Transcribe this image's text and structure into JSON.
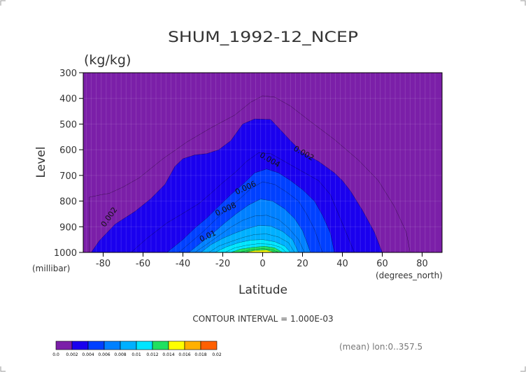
{
  "chart_data": {
    "type": "contour",
    "title": "SHUM_1992-12_NCEP",
    "units": "(kg/kg)",
    "xlabel": "Latitude",
    "ylabel": "Level",
    "x_unit_label": "(degrees_north)",
    "y_unit_label": "(millibar)",
    "xlim": [
      -90,
      90
    ],
    "ylim": [
      1000,
      300
    ],
    "x_ticks": [
      -80,
      -60,
      -40,
      -20,
      0,
      20,
      40,
      60,
      80
    ],
    "y_ticks": [
      300,
      400,
      500,
      600,
      700,
      800,
      900,
      1000
    ],
    "contour_interval_text": "CONTOUR INTERVAL = 1.000E-03",
    "footer_text": "(mean) lon:0..357.5",
    "background_color": "#7b1fa8",
    "colorbar": {
      "ticks": [
        "0.0",
        "0.002",
        "0.004",
        "0.006",
        "0.008",
        "0.01",
        "0.012",
        "0.014",
        "0.016",
        "0.018",
        "0.02"
      ],
      "colors": [
        "#7b1fa8",
        "#1a00ee",
        "#0040ff",
        "#0080ff",
        "#00b0ff",
        "#00e5ff",
        "#20e060",
        "#ffff00",
        "#ffb000",
        "#ff6000",
        "#ff0000"
      ]
    },
    "contour_labels": [
      {
        "text": "0.002",
        "lat": -76,
        "lev": 868,
        "rot": -55
      },
      {
        "text": "0.002",
        "lat": 20,
        "lev": 622,
        "rot": 30
      },
      {
        "text": "0.004",
        "lat": 3,
        "lev": 648,
        "rot": 30
      },
      {
        "text": "0.006",
        "lat": -8,
        "lev": 757,
        "rot": -25
      },
      {
        "text": "0.008",
        "lat": -18,
        "lev": 840,
        "rot": -25
      },
      {
        "text": "0.01",
        "lat": -27,
        "lev": 945,
        "rot": -25
      }
    ],
    "filled_levels": [
      {
        "value": 0.001,
        "pts": [
          [
            -87,
            1000
          ],
          [
            -87,
            785
          ],
          [
            -81,
            775
          ],
          [
            -77,
            770
          ],
          [
            -70,
            745
          ],
          [
            -62,
            710
          ],
          [
            -50,
            635
          ],
          [
            -38,
            570
          ],
          [
            -26,
            515
          ],
          [
            -14,
            465
          ],
          [
            -6,
            415
          ],
          [
            0,
            390
          ],
          [
            6,
            395
          ],
          [
            14,
            430
          ],
          [
            24,
            490
          ],
          [
            36,
            560
          ],
          [
            48,
            640
          ],
          [
            58,
            720
          ],
          [
            66,
            820
          ],
          [
            72,
            920
          ],
          [
            74,
            1000
          ]
        ]
      },
      {
        "value": 0.002,
        "pts": [
          [
            -86,
            1000
          ],
          [
            -82,
            955
          ],
          [
            -74,
            890
          ],
          [
            -64,
            840
          ],
          [
            -56,
            790
          ],
          [
            -49,
            735
          ],
          [
            -44,
            665
          ],
          [
            -40,
            635
          ],
          [
            -34,
            620
          ],
          [
            -28,
            615
          ],
          [
            -22,
            600
          ],
          [
            -16,
            565
          ],
          [
            -10,
            500
          ],
          [
            -4,
            480
          ],
          [
            4,
            482
          ],
          [
            8,
            515
          ],
          [
            14,
            565
          ],
          [
            20,
            612
          ],
          [
            28,
            645
          ],
          [
            36,
            690
          ],
          [
            40,
            720
          ],
          [
            44,
            760
          ],
          [
            50,
            835
          ],
          [
            56,
            920
          ],
          [
            60,
            1000
          ]
        ]
      },
      {
        "value": 0.003,
        "pts": [
          [
            -66,
            1000
          ],
          [
            -58,
            945
          ],
          [
            -48,
            885
          ],
          [
            -40,
            848
          ],
          [
            -32,
            810
          ],
          [
            -26,
            770
          ],
          [
            -20,
            728
          ],
          [
            -14,
            690
          ],
          [
            -8,
            645
          ],
          [
            -2,
            612
          ],
          [
            4,
            615
          ],
          [
            12,
            650
          ],
          [
            20,
            685
          ],
          [
            28,
            720
          ],
          [
            34,
            775
          ],
          [
            38,
            850
          ],
          [
            42,
            925
          ],
          [
            46,
            1000
          ]
        ]
      },
      {
        "value": 0.004,
        "pts": [
          [
            -48,
            1000
          ],
          [
            -40,
            950
          ],
          [
            -34,
            905
          ],
          [
            -28,
            866
          ],
          [
            -22,
            820
          ],
          [
            -16,
            775
          ],
          [
            -10,
            735
          ],
          [
            -4,
            690
          ],
          [
            2,
            675
          ],
          [
            8,
            690
          ],
          [
            14,
            720
          ],
          [
            20,
            755
          ],
          [
            26,
            800
          ],
          [
            30,
            855
          ],
          [
            34,
            925
          ],
          [
            36,
            1000
          ]
        ]
      },
      {
        "value": 0.005,
        "pts": [
          [
            -42,
            1000
          ],
          [
            -36,
            960
          ],
          [
            -30,
            920
          ],
          [
            -24,
            875
          ],
          [
            -18,
            832
          ],
          [
            -12,
            795
          ],
          [
            -6,
            752
          ],
          [
            0,
            725
          ],
          [
            6,
            735
          ],
          [
            12,
            765
          ],
          [
            18,
            800
          ],
          [
            22,
            850
          ],
          [
            26,
            910
          ],
          [
            30,
            1000
          ]
        ]
      },
      {
        "value": 0.006,
        "pts": [
          [
            -37,
            1000
          ],
          [
            -31,
            963
          ],
          [
            -25,
            925
          ],
          [
            -19,
            885
          ],
          [
            -13,
            848
          ],
          [
            -7,
            815
          ],
          [
            -1,
            792
          ],
          [
            5,
            800
          ],
          [
            11,
            830
          ],
          [
            16,
            868
          ],
          [
            20,
            915
          ],
          [
            24,
            1000
          ]
        ]
      },
      {
        "value": 0.007,
        "pts": [
          [
            -34,
            1000
          ],
          [
            -28,
            968
          ],
          [
            -22,
            935
          ],
          [
            -16,
            902
          ],
          [
            -10,
            875
          ],
          [
            -4,
            858
          ],
          [
            2,
            855
          ],
          [
            8,
            872
          ],
          [
            13,
            905
          ],
          [
            18,
            950
          ],
          [
            21,
            1000
          ]
        ]
      },
      {
        "value": 0.008,
        "pts": [
          [
            -31,
            1000
          ],
          [
            -26,
            970
          ],
          [
            -20,
            945
          ],
          [
            -14,
            925
          ],
          [
            -8,
            908
          ],
          [
            -2,
            895
          ],
          [
            4,
            897
          ],
          [
            10,
            918
          ],
          [
            15,
            950
          ],
          [
            18,
            1000
          ]
        ]
      },
      {
        "value": 0.009,
        "pts": [
          [
            -27,
            1000
          ],
          [
            -22,
            975
          ],
          [
            -16,
            958
          ],
          [
            -10,
            942
          ],
          [
            -4,
            930
          ],
          [
            2,
            928
          ],
          [
            8,
            940
          ],
          [
            13,
            962
          ],
          [
            16,
            1000
          ]
        ]
      },
      {
        "value": 0.01,
        "pts": [
          [
            -24,
            1000
          ],
          [
            -18,
            978
          ],
          [
            -12,
            962
          ],
          [
            -6,
            952
          ],
          [
            0,
            950
          ],
          [
            6,
            958
          ],
          [
            11,
            975
          ],
          [
            14,
            1000
          ]
        ]
      },
      {
        "value": 0.011,
        "pts": [
          [
            -19,
            1000
          ],
          [
            -14,
            982
          ],
          [
            -8,
            972
          ],
          [
            -2,
            966
          ],
          [
            4,
            968
          ],
          [
            9,
            980
          ],
          [
            12,
            1000
          ]
        ]
      },
      {
        "value": 0.012,
        "pts": [
          [
            -16,
            1000
          ],
          [
            -11,
            987
          ],
          [
            -5,
            980
          ],
          [
            1,
            976
          ],
          [
            6,
            982
          ],
          [
            10,
            1000
          ]
        ]
      },
      {
        "value": 0.013,
        "pts": [
          [
            -12,
            1000
          ],
          [
            -6,
            990
          ],
          [
            0,
            985
          ],
          [
            5,
            990
          ],
          [
            8,
            1000
          ]
        ]
      },
      {
        "value": 0.014,
        "pts": [
          [
            -9,
            1000
          ],
          [
            -4,
            993
          ],
          [
            2,
            991
          ],
          [
            6,
            1000
          ]
        ]
      }
    ]
  }
}
